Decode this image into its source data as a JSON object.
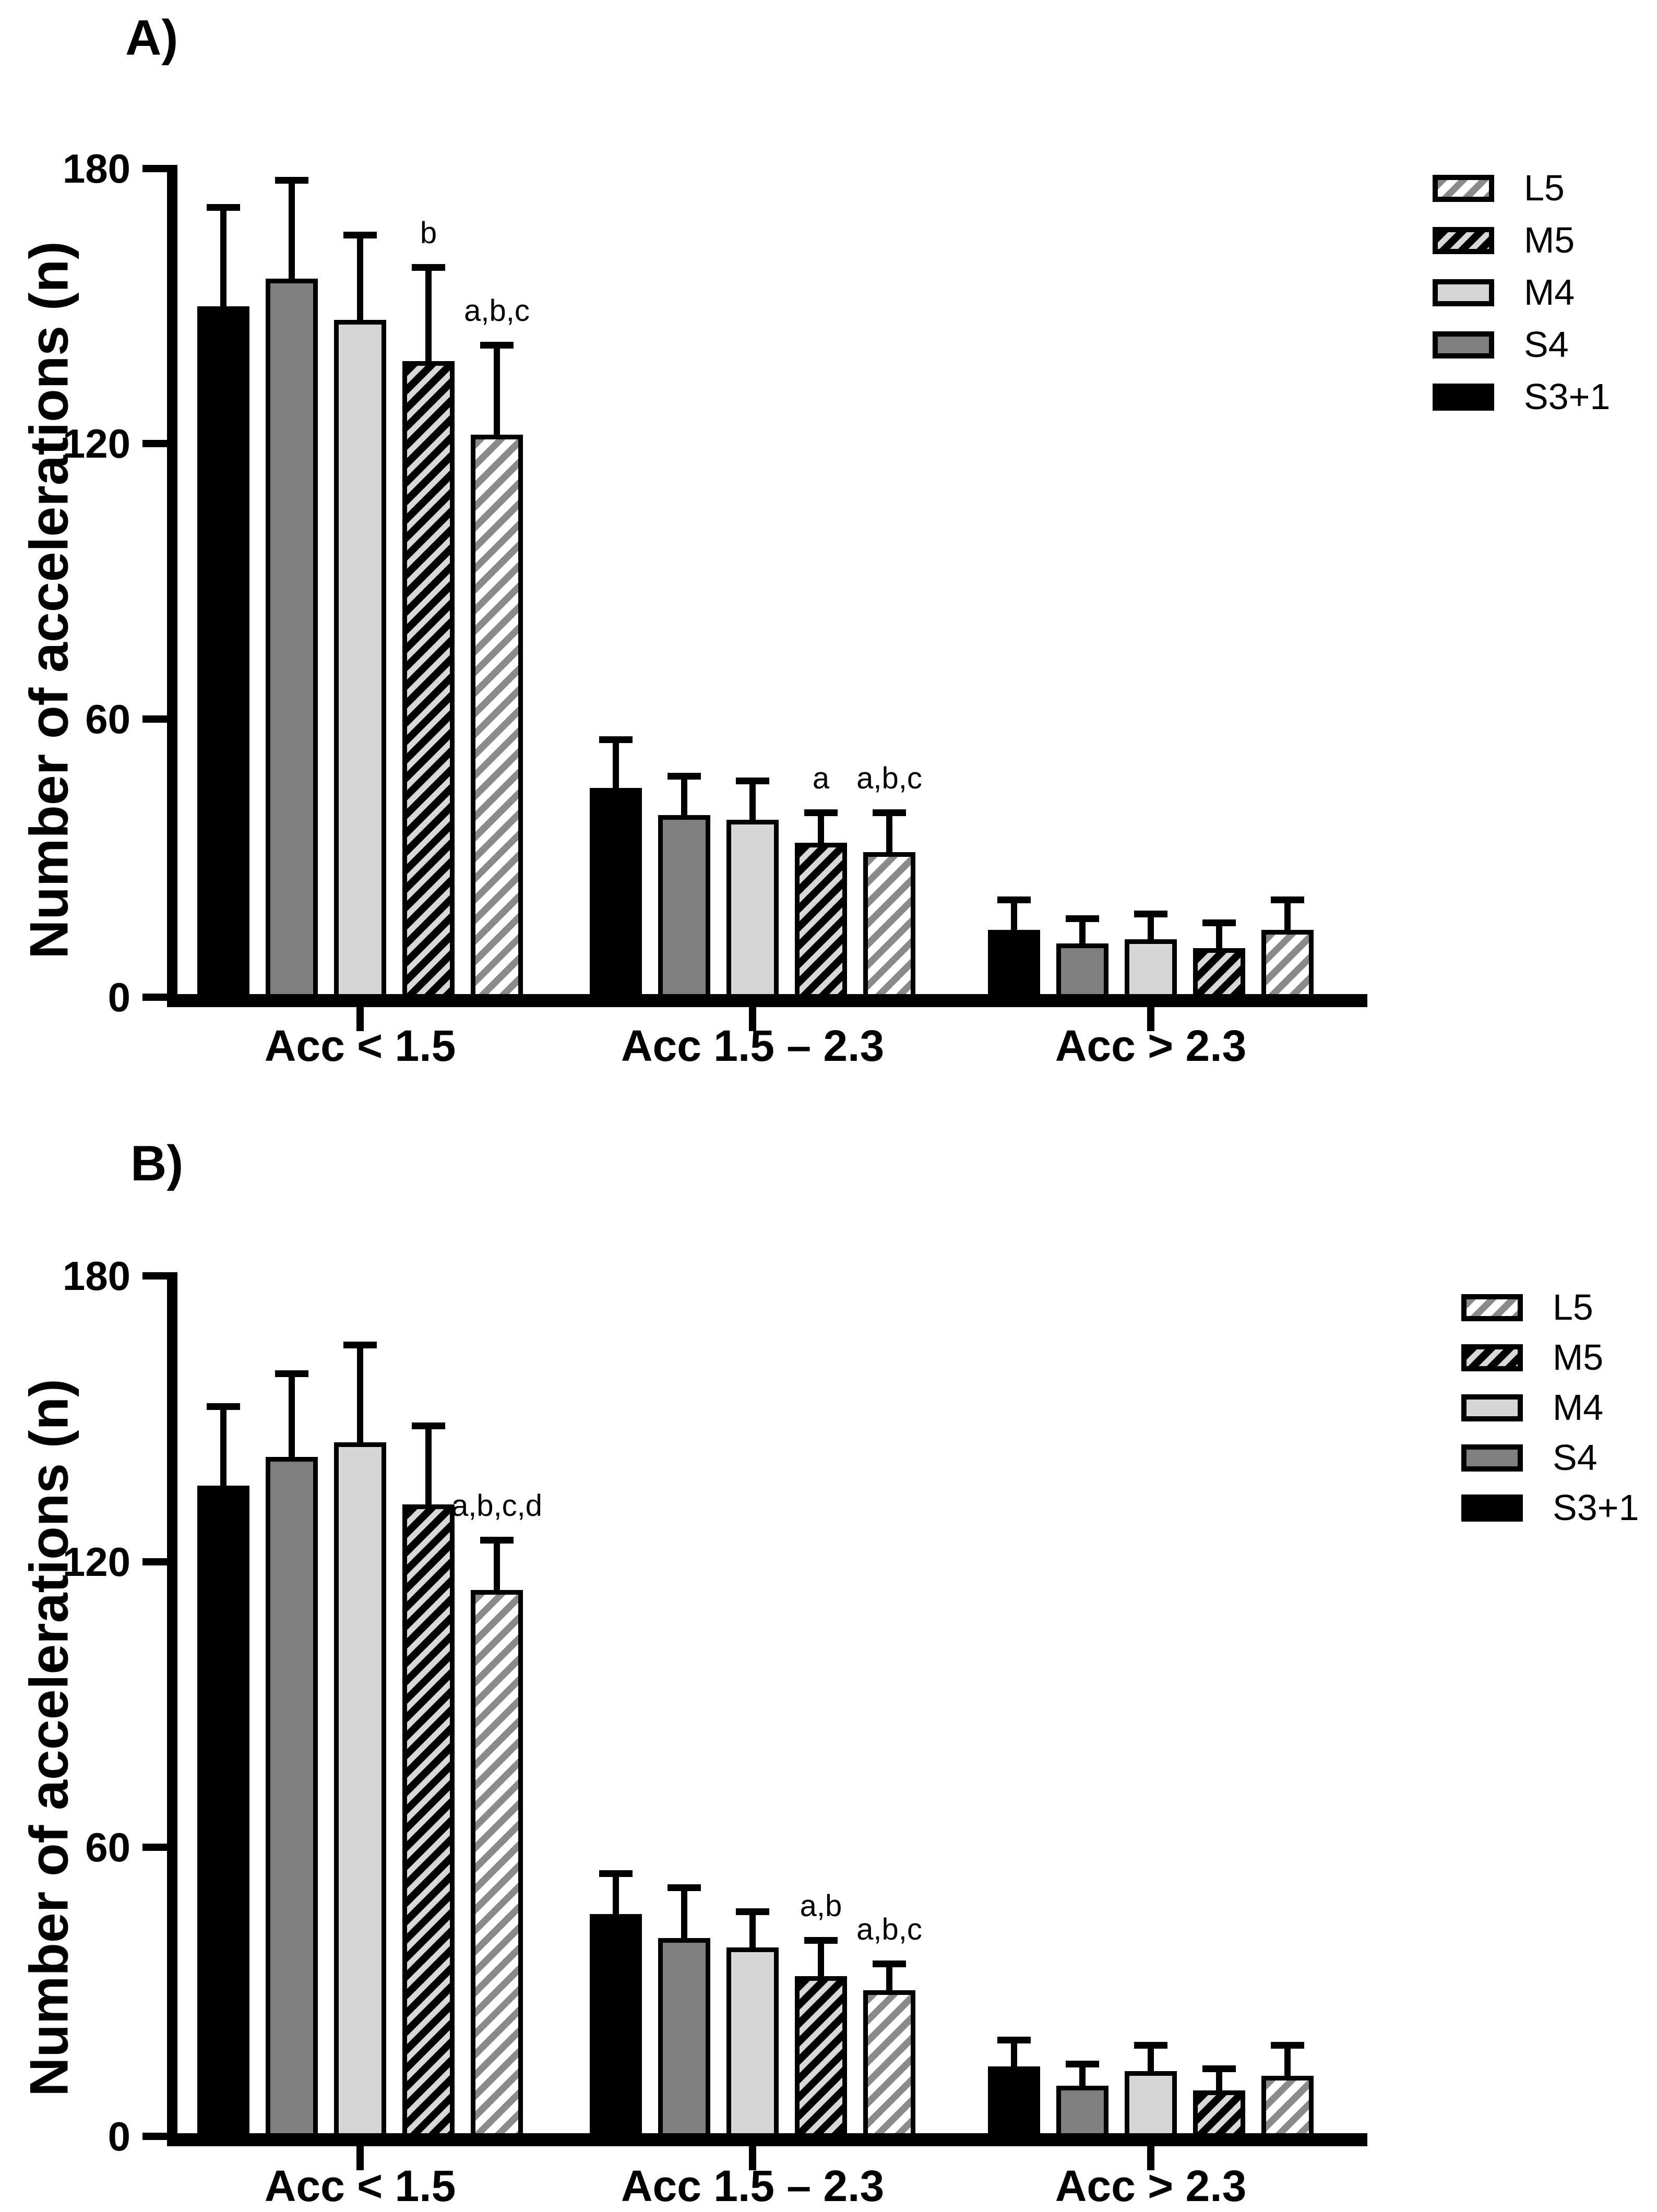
{
  "figure_title": "",
  "palette": {
    "black": "#000000",
    "dark_gray": "#7f7f7f",
    "light_gray": "#d6d6d6",
    "hatch_line_gray": "#8a8a8a",
    "hatch_dark_bg": "#d8d8d8",
    "white": "#ffffff"
  },
  "chart_data": [
    {
      "type": "bar",
      "title": "A)",
      "ylabel": "Number of accelerations (n)",
      "xlabel": "",
      "categories": [
        "Acc < 1.5",
        "Acc 1.5 – 2.3",
        "Acc > 2.3"
      ],
      "ylim": [
        0,
        180
      ],
      "yticks": [
        0,
        60,
        120,
        180
      ],
      "grid": false,
      "legend_position": "top-right",
      "legend_order": [
        "L5",
        "M5",
        "M4",
        "S4",
        "S3+1"
      ],
      "bar_order": [
        "S3+1",
        "S4",
        "M4",
        "M5",
        "L5"
      ],
      "series": [
        {
          "name": "S3+1",
          "fill": "solid_black",
          "values": [
            150,
            45,
            14
          ],
          "errors_plus": [
            22,
            11,
            7
          ],
          "annotations": [
            "",
            "",
            ""
          ]
        },
        {
          "name": "S4",
          "fill": "solid_dark_gray",
          "values": [
            156,
            39,
            11
          ],
          "errors_plus": [
            22,
            9,
            6
          ],
          "annotations": [
            "",
            "",
            ""
          ]
        },
        {
          "name": "M4",
          "fill": "solid_light_gray",
          "values": [
            147,
            38,
            12
          ],
          "errors_plus": [
            19,
            9,
            6
          ],
          "annotations": [
            "",
            "",
            ""
          ]
        },
        {
          "name": "M5",
          "fill": "hatch_black",
          "values": [
            138,
            33,
            10
          ],
          "errors_plus": [
            21,
            7,
            6
          ],
          "annotations": [
            "b",
            "a",
            ""
          ]
        },
        {
          "name": "L5",
          "fill": "hatch_gray",
          "values": [
            122,
            31,
            14
          ],
          "errors_plus": [
            20,
            9,
            7
          ],
          "annotations": [
            "a,b,c",
            "a,b,c",
            ""
          ]
        }
      ]
    },
    {
      "type": "bar",
      "title": "B)",
      "ylabel": "Number of accelerations (n)",
      "xlabel": "",
      "categories": [
        "Acc < 1.5",
        "Acc 1.5 – 2.3",
        "Acc > 2.3"
      ],
      "ylim": [
        0,
        180
      ],
      "yticks": [
        0,
        60,
        120,
        180
      ],
      "grid": false,
      "legend_position": "top-right",
      "legend_order": [
        "L5",
        "M5",
        "M4",
        "S4",
        "S3+1"
      ],
      "bar_order": [
        "S3+1",
        "S4",
        "M4",
        "M5",
        "L5"
      ],
      "series": [
        {
          "name": "S3+1",
          "fill": "solid_black",
          "values": [
            136,
            46,
            14
          ],
          "errors_plus": [
            17,
            9,
            6
          ],
          "annotations": [
            "",
            "",
            ""
          ]
        },
        {
          "name": "S4",
          "fill": "solid_dark_gray",
          "values": [
            142,
            41,
            10
          ],
          "errors_plus": [
            18,
            11,
            5
          ],
          "annotations": [
            "",
            "",
            ""
          ]
        },
        {
          "name": "M4",
          "fill": "solid_light_gray",
          "values": [
            145,
            39,
            13
          ],
          "errors_plus": [
            21,
            8,
            6
          ],
          "annotations": [
            "",
            "",
            ""
          ]
        },
        {
          "name": "M5",
          "fill": "hatch_black",
          "values": [
            132,
            33,
            9
          ],
          "errors_plus": [
            17,
            8,
            5
          ],
          "annotations": [
            "",
            "a,b",
            ""
          ]
        },
        {
          "name": "L5",
          "fill": "hatch_gray",
          "values": [
            114,
            30,
            12
          ],
          "errors_plus": [
            11,
            6,
            7
          ],
          "annotations": [
            "a,b,c,d",
            "a,b,c",
            ""
          ]
        }
      ]
    }
  ]
}
